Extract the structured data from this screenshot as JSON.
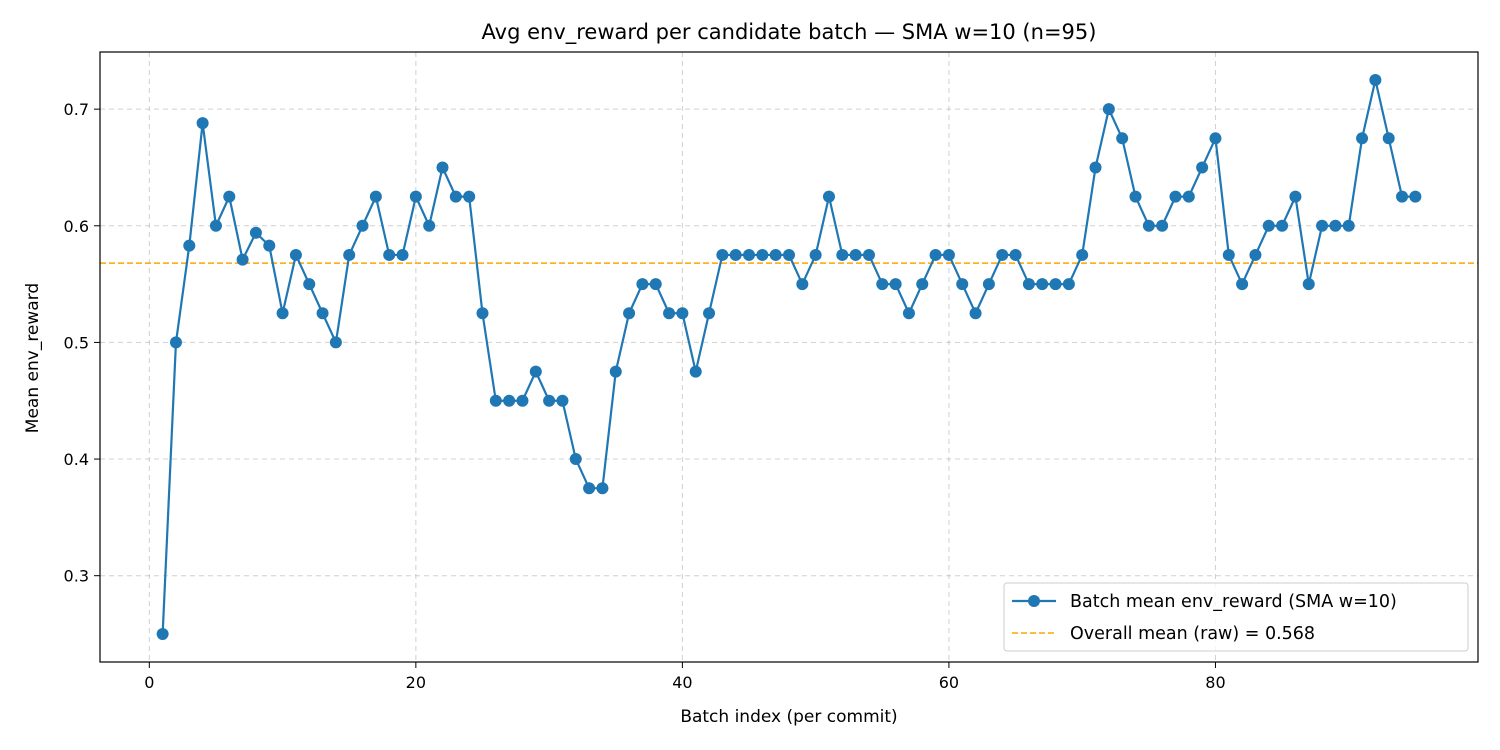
{
  "chart_data": {
    "type": "line",
    "title": "Avg env_reward per candidate batch — SMA w=10 (n=95)",
    "xlabel": "Batch index (per commit)",
    "ylabel": "Mean env_reward",
    "xlim": [
      -3.7,
      99.7
    ],
    "ylim": [
      0.226,
      0.749
    ],
    "xticks": [
      0,
      20,
      40,
      60,
      80
    ],
    "yticks": [
      0.3,
      0.4,
      0.5,
      0.6,
      0.7
    ],
    "ytick_labels": [
      "0.3",
      "0.4",
      "0.5",
      "0.6",
      "0.7"
    ],
    "grid": true,
    "legend_position": "lower-right",
    "series": [
      {
        "name": "Batch mean env_reward (SMA w=10)",
        "color": "#1f77b4",
        "marker": "circle",
        "x": [
          1,
          2,
          3,
          4,
          5,
          6,
          7,
          8,
          9,
          10,
          11,
          12,
          13,
          14,
          15,
          16,
          17,
          18,
          19,
          20,
          21,
          22,
          23,
          24,
          25,
          26,
          27,
          28,
          29,
          30,
          31,
          32,
          33,
          34,
          35,
          36,
          37,
          38,
          39,
          40,
          41,
          42,
          43,
          44,
          45,
          46,
          47,
          48,
          49,
          50,
          51,
          52,
          53,
          54,
          55,
          56,
          57,
          58,
          59,
          60,
          61,
          62,
          63,
          64,
          65,
          66,
          67,
          68,
          69,
          70,
          71,
          72,
          73,
          74,
          75,
          76,
          77,
          78,
          79,
          80,
          81,
          82,
          83,
          84,
          85,
          86,
          87,
          88,
          89,
          90,
          91,
          92,
          93,
          94,
          95
        ],
        "values": [
          0.25,
          0.5,
          0.583,
          0.688,
          0.6,
          0.625,
          0.571,
          0.594,
          0.583,
          0.525,
          0.575,
          0.55,
          0.525,
          0.5,
          0.575,
          0.6,
          0.625,
          0.575,
          0.575,
          0.625,
          0.6,
          0.65,
          0.625,
          0.625,
          0.525,
          0.45,
          0.45,
          0.45,
          0.475,
          0.45,
          0.45,
          0.4,
          0.375,
          0.375,
          0.475,
          0.525,
          0.55,
          0.55,
          0.525,
          0.525,
          0.475,
          0.525,
          0.575,
          0.575,
          0.575,
          0.575,
          0.575,
          0.575,
          0.55,
          0.575,
          0.625,
          0.575,
          0.575,
          0.575,
          0.55,
          0.55,
          0.525,
          0.55,
          0.575,
          0.575,
          0.55,
          0.525,
          0.55,
          0.575,
          0.575,
          0.55,
          0.55,
          0.55,
          0.55,
          0.575,
          0.65,
          0.7,
          0.675,
          0.625,
          0.6,
          0.6,
          0.625,
          0.625,
          0.65,
          0.675,
          0.575,
          0.55,
          0.575,
          0.6,
          0.6,
          0.625,
          0.55,
          0.6,
          0.6,
          0.6,
          0.675,
          0.725,
          0.675,
          0.625,
          0.625
        ]
      }
    ],
    "reference_line": {
      "name": "Overall mean (raw) = 0.568",
      "value": 0.568,
      "color": "#ffa500",
      "style": "dashed"
    }
  }
}
